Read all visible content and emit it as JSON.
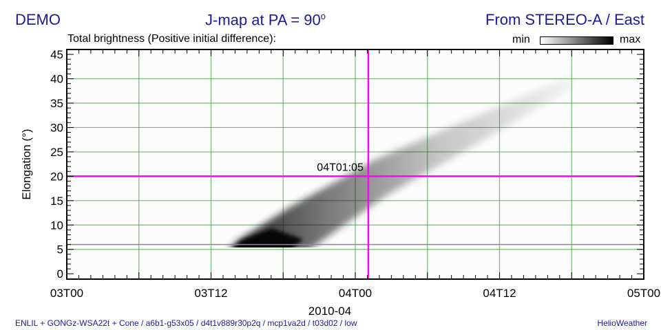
{
  "header": {
    "left": "DEMO",
    "center": "J-map at PA = 90",
    "center_sup": "o",
    "right": "From STEREO-A / East"
  },
  "subtitle": "Total brightness (Positive initial difference):",
  "colorbar": {
    "min_label": "min",
    "max_label": "max"
  },
  "footer": {
    "left": "ENLIL + GONGz-WSA22t + Cone / a6b1-g53x05 / d4t1v889r30p2q / mcp1va2d / t03d02 / low",
    "right": "HelioWeather"
  },
  "colors": {
    "grid": "#3aa13a",
    "marker": "#ff00ff",
    "text_navy": "#1a1a9a"
  },
  "chart_data": {
    "type": "heatmap",
    "title": "J-map at PA = 90°",
    "xlabel": "2010-04",
    "ylabel": "Elongation (°)",
    "x_range_hours": [
      0,
      48
    ],
    "ylim": [
      -1.1,
      46
    ],
    "xticks": [
      {
        "h": 0,
        "label": "03T00"
      },
      {
        "h": 12,
        "label": "03T12"
      },
      {
        "h": 24,
        "label": "04T00"
      },
      {
        "h": 36,
        "label": "04T12"
      },
      {
        "h": 48,
        "label": "05T00"
      }
    ],
    "yticks": [
      0,
      5,
      10,
      15,
      20,
      25,
      30,
      35,
      40,
      45
    ],
    "x_gridlines_hours": [
      6,
      12,
      18,
      24,
      30,
      36,
      42
    ],
    "y_gridlines": [
      5,
      10,
      15,
      20,
      25,
      30,
      35,
      40
    ],
    "reference_line_elongation": 6,
    "marker": {
      "time_hours": 25.083,
      "elongation": 20,
      "label": "04T01:05"
    },
    "cme_track": [
      {
        "h": 13.5,
        "elong": 6.5
      },
      {
        "h": 18,
        "elong": 9
      },
      {
        "h": 24,
        "elong": 17
      },
      {
        "h": 30,
        "elong": 25
      },
      {
        "h": 36,
        "elong": 32
      },
      {
        "h": 42,
        "elong": 38.5
      }
    ],
    "grid": true
  }
}
